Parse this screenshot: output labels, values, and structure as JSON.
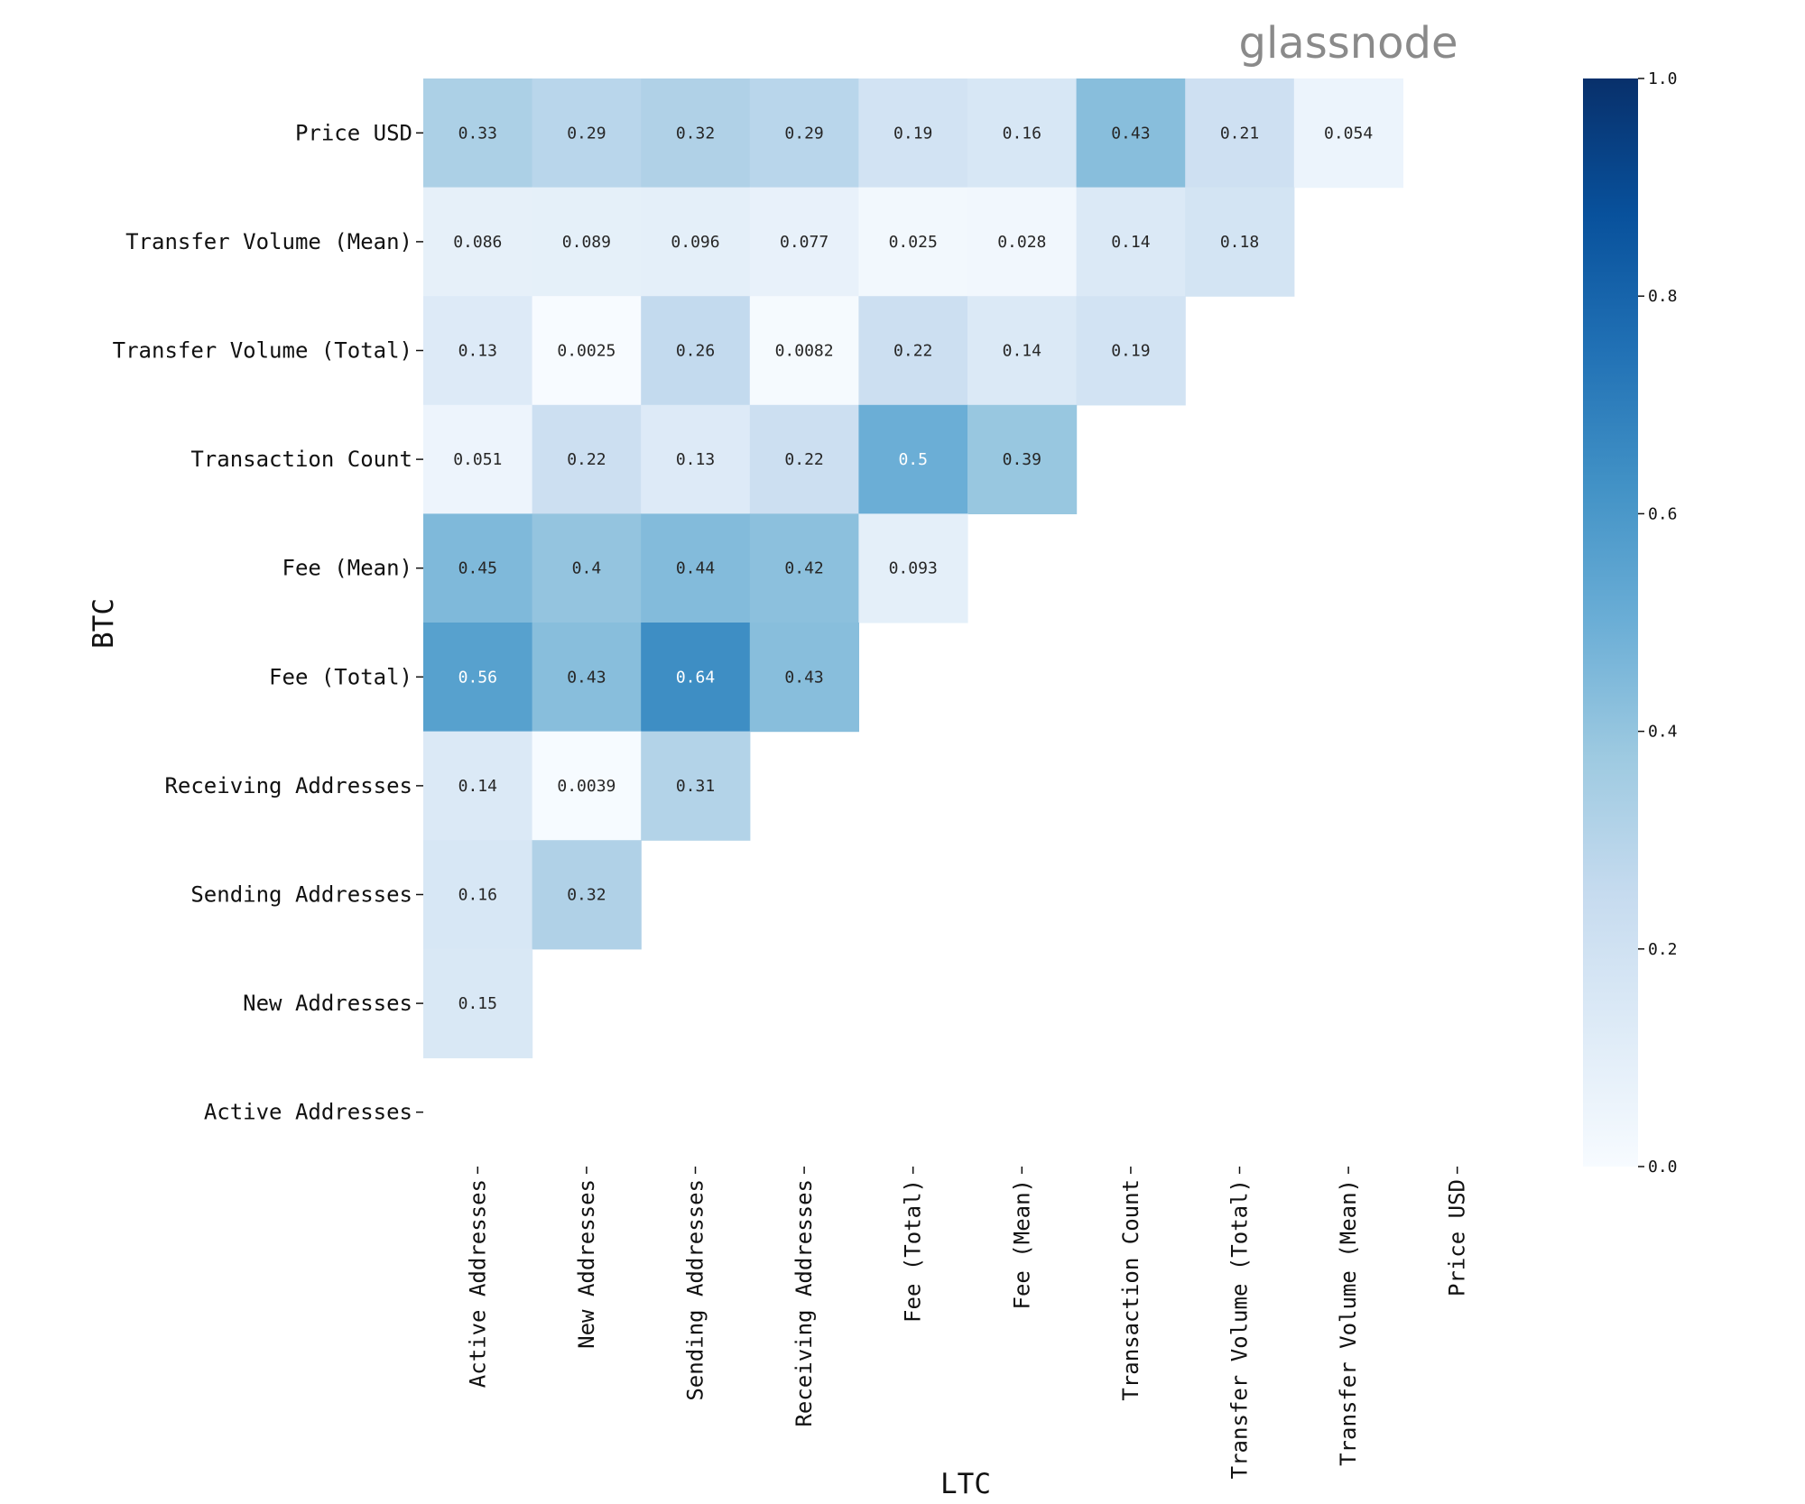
{
  "logo": {
    "text": "glassnode",
    "color": "#8a8a8a"
  },
  "chart_data": {
    "type": "heatmap",
    "title": "",
    "xlabel": "LTC",
    "ylabel": "BTC",
    "x_categories": [
      "Active Addresses",
      "New Addresses",
      "Sending Addresses",
      "Receiving Addresses",
      "Fee (Total)",
      "Fee (Mean)",
      "Transaction Count",
      "Transfer Volume (Total)",
      "Transfer Volume (Mean)",
      "Price USD"
    ],
    "y_categories": [
      "Price USD",
      "Transfer Volume (Mean)",
      "Transfer Volume (Total)",
      "Transaction Count",
      "Fee (Mean)",
      "Fee (Total)",
      "Receiving Addresses",
      "Sending Addresses",
      "New Addresses",
      "Active Addresses"
    ],
    "values": [
      [
        0.33,
        0.29,
        0.32,
        0.29,
        0.19,
        0.16,
        0.43,
        0.21,
        0.054,
        null
      ],
      [
        0.086,
        0.089,
        0.096,
        0.077,
        0.025,
        0.028,
        0.14,
        0.18,
        null,
        null
      ],
      [
        0.13,
        0.0025,
        0.26,
        0.0082,
        0.22,
        0.14,
        0.19,
        null,
        null,
        null
      ],
      [
        0.051,
        0.22,
        0.13,
        0.22,
        0.5,
        0.39,
        null,
        null,
        null,
        null
      ],
      [
        0.45,
        0.4,
        0.44,
        0.42,
        0.093,
        null,
        null,
        null,
        null,
        null
      ],
      [
        0.56,
        0.43,
        0.64,
        0.43,
        null,
        null,
        null,
        null,
        null,
        null
      ],
      [
        0.14,
        0.0039,
        0.31,
        null,
        null,
        null,
        null,
        null,
        null,
        null
      ],
      [
        0.16,
        0.32,
        null,
        null,
        null,
        null,
        null,
        null,
        null,
        null
      ],
      [
        0.15,
        null,
        null,
        null,
        null,
        null,
        null,
        null,
        null,
        null
      ],
      [
        null,
        null,
        null,
        null,
        null,
        null,
        null,
        null,
        null,
        null
      ]
    ],
    "colorbar": {
      "min": 0.0,
      "max": 1.0,
      "ticks": [
        "0.0",
        "0.2",
        "0.4",
        "0.6",
        "0.8",
        "1.0"
      ],
      "colormap": "Blues",
      "color_stops": [
        "#f7fbff",
        "#deebf7",
        "#c6dbef",
        "#9ecae1",
        "#6baed6",
        "#4292c6",
        "#2171b5",
        "#08519c",
        "#08306b"
      ]
    },
    "legend": "colorbar on right",
    "grid": false
  }
}
